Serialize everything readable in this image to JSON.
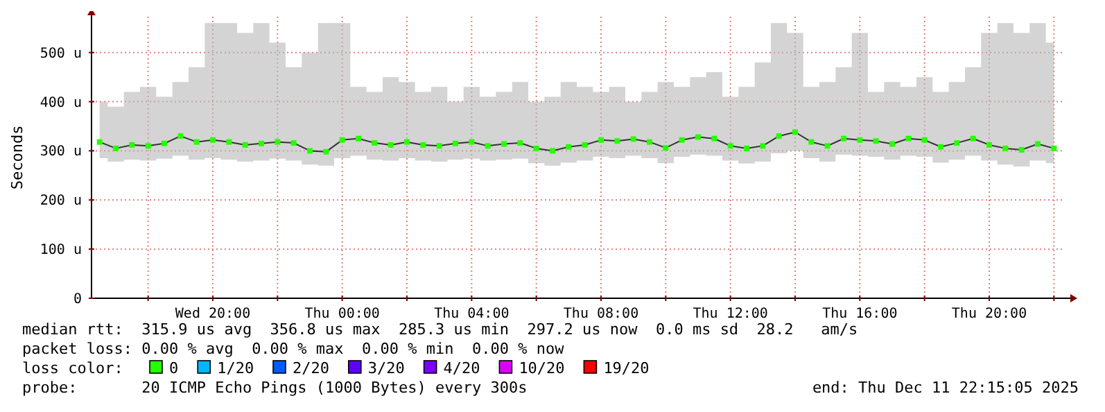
{
  "chart_data": {
    "type": "line",
    "ylabel": "Seconds",
    "marker": "square",
    "grid": true,
    "legend": "bottom",
    "xlim": [
      "2025-12-10T16:15",
      "2025-12-11T22:15"
    ],
    "xticks": [
      {
        "value": "2025-12-10T18:00",
        "label": null
      },
      {
        "value": "2025-12-10T20:00",
        "label": "Wed 20:00"
      },
      {
        "value": "2025-12-10T22:00",
        "label": null
      },
      {
        "value": "2025-12-11T00:00",
        "label": "Thu 00:00"
      },
      {
        "value": "2025-12-11T02:00",
        "label": null
      },
      {
        "value": "2025-12-11T04:00",
        "label": "Thu 04:00"
      },
      {
        "value": "2025-12-11T06:00",
        "label": null
      },
      {
        "value": "2025-12-11T08:00",
        "label": "Thu 08:00"
      },
      {
        "value": "2025-12-11T10:00",
        "label": null
      },
      {
        "value": "2025-12-11T12:00",
        "label": "Thu 12:00"
      },
      {
        "value": "2025-12-11T14:00",
        "label": null
      },
      {
        "value": "2025-12-11T16:00",
        "label": "Thu 16:00"
      },
      {
        "value": "2025-12-11T18:00",
        "label": null
      },
      {
        "value": "2025-12-11T20:00",
        "label": "Thu 20:00"
      },
      {
        "value": "2025-12-11T22:00",
        "label": null
      }
    ],
    "ylim": [
      0,
      573
    ],
    "yticks": [
      0,
      {
        "value": 100,
        "label": "100 u"
      },
      {
        "value": 200,
        "label": "200 u"
      },
      {
        "value": 300,
        "label": "300 u"
      },
      {
        "value": 400,
        "label": "400 u"
      },
      {
        "value": 500,
        "label": "500 u"
      }
    ],
    "x": [
      "2025-12-10T16:30",
      "2025-12-10T17:00",
      "2025-12-10T17:30",
      "2025-12-10T18:00",
      "2025-12-10T18:30",
      "2025-12-10T19:00",
      "2025-12-10T19:30",
      "2025-12-10T20:00",
      "2025-12-10T20:30",
      "2025-12-10T21:00",
      "2025-12-10T21:30",
      "2025-12-10T22:00",
      "2025-12-10T22:30",
      "2025-12-10T23:00",
      "2025-12-10T23:30",
      "2025-12-11T00:00",
      "2025-12-11T00:30",
      "2025-12-11T01:00",
      "2025-12-11T01:30",
      "2025-12-11T02:00",
      "2025-12-11T02:30",
      "2025-12-11T03:00",
      "2025-12-11T03:30",
      "2025-12-11T04:00",
      "2025-12-11T04:30",
      "2025-12-11T05:00",
      "2025-12-11T05:30",
      "2025-12-11T06:00",
      "2025-12-11T06:30",
      "2025-12-11T07:00",
      "2025-12-11T07:30",
      "2025-12-11T08:00",
      "2025-12-11T08:30",
      "2025-12-11T09:00",
      "2025-12-11T09:30",
      "2025-12-11T10:00",
      "2025-12-11T10:30",
      "2025-12-11T11:00",
      "2025-12-11T11:30",
      "2025-12-11T12:00",
      "2025-12-11T12:30",
      "2025-12-11T13:00",
      "2025-12-11T13:30",
      "2025-12-11T14:00",
      "2025-12-11T14:30",
      "2025-12-11T15:00",
      "2025-12-11T15:30",
      "2025-12-11T16:00",
      "2025-12-11T16:30",
      "2025-12-11T17:00",
      "2025-12-11T17:30",
      "2025-12-11T18:00",
      "2025-12-11T18:30",
      "2025-12-11T19:00",
      "2025-12-11T19:30",
      "2025-12-11T20:00",
      "2025-12-11T20:30",
      "2025-12-11T21:00",
      "2025-12-11T21:30",
      "2025-12-11T22:00"
    ],
    "series": [
      {
        "name": "0",
        "color": "#26ff00",
        "values": [
          318,
          305,
          312,
          310,
          315,
          330,
          318,
          322,
          318,
          312,
          315,
          318,
          316,
          300,
          298,
          322,
          325,
          316,
          312,
          318,
          312,
          310,
          315,
          318,
          310,
          314,
          316,
          305,
          300,
          308,
          312,
          322,
          320,
          324,
          318,
          306,
          322,
          328,
          325,
          310,
          305,
          310,
          330,
          338,
          318,
          310,
          325,
          322,
          320,
          314,
          325,
          322,
          308,
          316,
          325,
          312,
          305,
          302,
          314,
          305
        ],
        "lower": [
          285,
          278,
          282,
          280,
          284,
          290,
          282,
          285,
          282,
          278,
          280,
          284,
          280,
          272,
          270,
          285,
          290,
          282,
          280,
          285,
          280,
          278,
          282,
          284,
          280,
          282,
          284,
          275,
          270,
          276,
          280,
          288,
          285,
          290,
          285,
          275,
          288,
          292,
          290,
          280,
          274,
          278,
          295,
          300,
          285,
          278,
          292,
          290,
          288,
          282,
          290,
          288,
          276,
          282,
          290,
          280,
          272,
          268,
          280,
          275
        ],
        "upper": [
          400,
          390,
          420,
          430,
          410,
          440,
          470,
          560,
          560,
          540,
          560,
          520,
          470,
          500,
          560,
          560,
          430,
          420,
          450,
          440,
          420,
          430,
          400,
          430,
          410,
          420,
          440,
          400,
          410,
          440,
          430,
          420,
          430,
          400,
          420,
          440,
          430,
          450,
          460,
          410,
          430,
          480,
          560,
          540,
          430,
          440,
          470,
          540,
          420,
          440,
          430,
          450,
          420,
          440,
          470,
          540,
          560,
          540,
          560,
          520
        ]
      },
      {
        "name": "1/20",
        "color": "#00b8ff",
        "values": [
          null,
          null,
          null,
          null,
          null,
          null,
          null,
          null,
          null,
          null,
          null,
          null,
          null,
          null,
          null,
          null,
          null,
          null,
          null,
          null,
          null,
          null,
          null,
          null,
          null,
          null,
          null,
          null,
          null,
          null,
          null,
          null,
          null,
          null,
          null,
          null,
          null,
          null,
          null,
          null,
          null,
          null,
          null,
          null,
          null,
          null,
          null,
          null,
          null,
          null,
          null,
          null,
          null,
          null,
          null,
          null,
          null,
          null,
          null,
          null
        ]
      },
      {
        "name": "2/20",
        "color": "#0059ff",
        "values": [
          null,
          null,
          null,
          null,
          null,
          null,
          null,
          null,
          null,
          null,
          null,
          null,
          null,
          null,
          null,
          null,
          null,
          null,
          null,
          null,
          null,
          null,
          null,
          null,
          null,
          null,
          null,
          null,
          null,
          null,
          null,
          null,
          null,
          null,
          null,
          null,
          null,
          null,
          null,
          null,
          null,
          null,
          null,
          null,
          null,
          null,
          null,
          null,
          null,
          null,
          null,
          null,
          null,
          null,
          null,
          null,
          null,
          null,
          null,
          null
        ]
      },
      {
        "name": "3/20",
        "color": "#5e00ff",
        "values": [
          null,
          null,
          null,
          null,
          null,
          null,
          null,
          null,
          null,
          null,
          null,
          null,
          null,
          null,
          null,
          null,
          null,
          null,
          null,
          null,
          null,
          null,
          null,
          null,
          null,
          null,
          null,
          null,
          null,
          null,
          null,
          null,
          null,
          null,
          null,
          null,
          null,
          null,
          null,
          null,
          null,
          null,
          null,
          null,
          null,
          null,
          null,
          null,
          null,
          null,
          null,
          null,
          null,
          null,
          null,
          null,
          null,
          null,
          null,
          null
        ]
      },
      {
        "name": "4/20",
        "color": "#7e00ff",
        "values": [
          null,
          null,
          null,
          null,
          null,
          null,
          null,
          null,
          null,
          null,
          null,
          null,
          null,
          null,
          null,
          null,
          null,
          null,
          null,
          null,
          null,
          null,
          null,
          null,
          null,
          null,
          null,
          null,
          null,
          null,
          null,
          null,
          null,
          null,
          null,
          null,
          null,
          null,
          null,
          null,
          null,
          null,
          null,
          null,
          null,
          null,
          null,
          null,
          null,
          null,
          null,
          null,
          null,
          null,
          null,
          null,
          null,
          null,
          null,
          null
        ]
      },
      {
        "name": "10/20",
        "color": "#dd00ff",
        "values": [
          null,
          null,
          null,
          null,
          null,
          null,
          null,
          null,
          null,
          null,
          null,
          null,
          null,
          null,
          null,
          null,
          null,
          null,
          null,
          null,
          null,
          null,
          null,
          null,
          null,
          null,
          null,
          null,
          null,
          null,
          null,
          null,
          null,
          null,
          null,
          null,
          null,
          null,
          null,
          null,
          null,
          null,
          null,
          null,
          null,
          null,
          null,
          null,
          null,
          null,
          null,
          null,
          null,
          null,
          null,
          null,
          null,
          null,
          null,
          null
        ]
      },
      {
        "name": "19/20",
        "color": "#ff0000",
        "values": [
          null,
          null,
          null,
          null,
          null,
          null,
          null,
          null,
          null,
          null,
          null,
          null,
          null,
          null,
          null,
          null,
          null,
          null,
          null,
          null,
          null,
          null,
          null,
          null,
          null,
          null,
          null,
          null,
          null,
          null,
          null,
          null,
          null,
          null,
          null,
          null,
          null,
          null,
          null,
          null,
          null,
          null,
          null,
          null,
          null,
          null,
          null,
          null,
          null,
          null,
          null,
          null,
          null,
          null,
          null,
          null,
          null,
          null,
          null,
          null
        ]
      }
    ],
    "annotations": [
      "median rtt:  315.9 us avg  356.8 us max  285.3 us min  297.2 us now  0.0 ms sd  28.2   am/s",
      "packet loss: 0.00 % avg  0.00 % max  0.00 % min  0.00 % now",
      "loss color:",
      "probe:       20 ICMP Echo Pings (1000 Bytes) every 300s",
      "end: Thu Dec 11 22:15:05 2025"
    ]
  }
}
